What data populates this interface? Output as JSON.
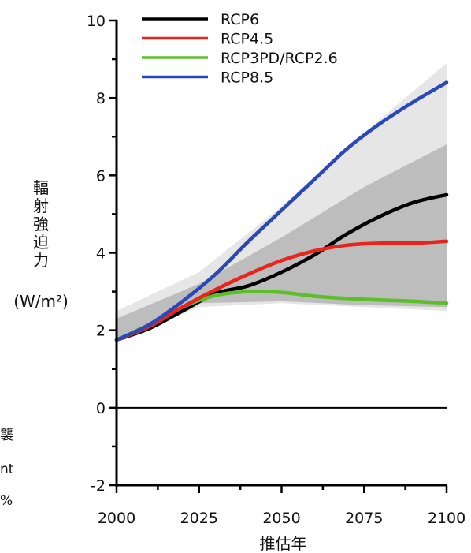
{
  "chart_data": {
    "type": "line",
    "title": "",
    "xlabel": "推估年",
    "ylabel_chars": [
      "輻",
      "射",
      "強",
      "迫",
      "力"
    ],
    "ylabel_unit": "(W/m²)",
    "xlim": [
      2000,
      2100
    ],
    "ylim": [
      -2,
      10
    ],
    "x_ticks": [
      2000,
      2025,
      2050,
      2075,
      2100
    ],
    "x_tick_labels": [
      "2000",
      "2025",
      "2050",
      "2075",
      "2100"
    ],
    "y_ticks": [
      -2,
      0,
      2,
      4,
      6,
      8,
      10
    ],
    "y_tick_labels": [
      "-2",
      "0",
      "2",
      "4",
      "6",
      "8",
      "10"
    ],
    "grid": false,
    "legend_position": "top",
    "series": [
      {
        "name": "RCP6",
        "color": "#000000",
        "x": [
          2000,
          2010,
          2020,
          2030,
          2040,
          2050,
          2060,
          2070,
          2080,
          2090,
          2100
        ],
        "y": [
          1.75,
          2.05,
          2.5,
          2.95,
          3.15,
          3.5,
          3.95,
          4.5,
          4.95,
          5.3,
          5.5
        ]
      },
      {
        "name": "RCP4.5",
        "color": "#e8241c",
        "x": [
          2000,
          2010,
          2020,
          2030,
          2040,
          2050,
          2060,
          2070,
          2080,
          2090,
          2100
        ],
        "y": [
          1.75,
          2.1,
          2.6,
          3.05,
          3.45,
          3.8,
          4.05,
          4.2,
          4.25,
          4.25,
          4.3
        ]
      },
      {
        "name": "RCP3PD/RCP2.6",
        "color": "#5cbf2a",
        "x": [
          2000,
          2010,
          2020,
          2030,
          2040,
          2050,
          2060,
          2070,
          2080,
          2090,
          2100
        ],
        "y": [
          1.75,
          2.15,
          2.6,
          2.9,
          3.0,
          2.98,
          2.88,
          2.82,
          2.78,
          2.75,
          2.7
        ]
      },
      {
        "name": "RCP8.5",
        "color": "#2a48b8",
        "x": [
          2000,
          2010,
          2020,
          2030,
          2040,
          2050,
          2060,
          2070,
          2080,
          2090,
          2100
        ],
        "y": [
          1.75,
          2.15,
          2.75,
          3.45,
          4.3,
          5.1,
          5.9,
          6.7,
          7.35,
          7.9,
          8.4
        ]
      }
    ],
    "bands": [
      {
        "color": "#e6e6e6",
        "x": [
          2000,
          2025,
          2050,
          2075,
          2100
        ],
        "upper": [
          2.5,
          3.5,
          5.2,
          7.1,
          8.9
        ],
        "lower": [
          1.7,
          2.6,
          2.7,
          2.6,
          2.5
        ]
      },
      {
        "color": "#bdbdbd",
        "x": [
          2000,
          2025,
          2050,
          2075,
          2100
        ],
        "upper": [
          2.3,
          3.2,
          4.4,
          5.7,
          6.8
        ],
        "lower": [
          1.7,
          2.7,
          2.75,
          2.65,
          2.6
        ]
      }
    ]
  },
  "margin_fragments": [
    "襲",
    "nt",
    "%"
  ]
}
